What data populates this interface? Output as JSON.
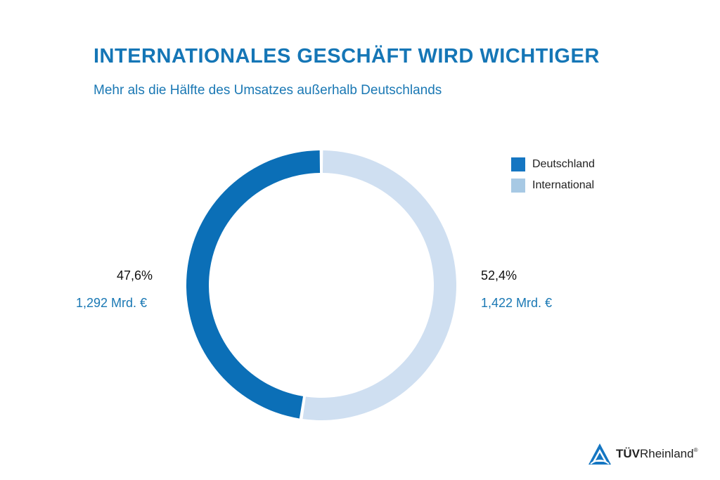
{
  "chart_data": {
    "type": "pie",
    "title": "INTERNATIONALES GESCHÄFT WIRD WICHTIGER",
    "subtitle": "Mehr als die Hälfte des Umsatzes außerhalb Deutschlands",
    "categories": [
      "Deutschland",
      "International"
    ],
    "values": [
      47.6,
      52.4
    ],
    "percent_labels": [
      "47,6%",
      "52,4%"
    ],
    "amount_labels": [
      "1,292 Mrd. €",
      "1,422 Mrd. €"
    ],
    "colors": [
      "#0b6fb7",
      "#cfdff1"
    ],
    "legend_colors": [
      "#1576c2",
      "#a7c9e4"
    ],
    "style": "donut",
    "legend_position": "top-right"
  },
  "brand": {
    "logo_bold": "TÜV",
    "logo_regular": "Rheinland",
    "logo_mark": "®"
  }
}
